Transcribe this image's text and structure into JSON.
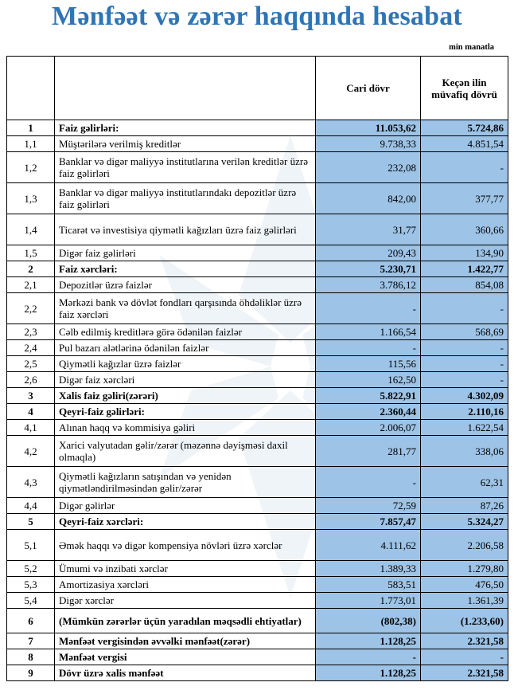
{
  "title": "Mənfəət və zərər haqqında hesabat",
  "unit": "min manatla",
  "header": {
    "num": "",
    "label": "",
    "current": "Cari dövr",
    "previous": "Keçən ilin müvafiq dövrü"
  },
  "colors": {
    "title": "#2f75b5",
    "value_cell": "#9dc3e6"
  },
  "rows": [
    {
      "num": "1",
      "label": "Faiz gəlirləri:",
      "current": "11.053,62",
      "previous": "5.724,86",
      "bold": true,
      "size": "s"
    },
    {
      "num": "1,1",
      "label": "Müştərilərə verilmiş kreditlər",
      "current": "9.738,33",
      "previous": "4.851,54",
      "size": "s"
    },
    {
      "num": "1,2",
      "label": "Banklar və digər maliyyə institutlarına verilən kreditlər üzrə faiz gəlirləri",
      "current": "232,08",
      "previous": "-",
      "size": "d"
    },
    {
      "num": "1,3",
      "label": "Banklar və digər maliyyə institutlarındakı depozitlər üzrə faiz gəlirləri",
      "current": "842,00",
      "previous": "377,77",
      "size": "d"
    },
    {
      "num": "1,4",
      "label": "Ticarət və investisiya qiymətli kağızları üzrə faiz gəlirləri",
      "current": "31,77",
      "previous": "360,66",
      "size": "d"
    },
    {
      "num": "1,5",
      "label": "Digər faiz gəlirləri",
      "current": "209,43",
      "previous": "134,90",
      "size": "s"
    },
    {
      "num": "2",
      "label": "Faiz xərcləri:",
      "current": "5.230,71",
      "previous": "1.422,77",
      "bold": true,
      "size": "s"
    },
    {
      "num": "2,1",
      "label": "Depozitlər üzrə faizlər",
      "current": "3.786,12",
      "previous": "854,08",
      "size": "s"
    },
    {
      "num": "2,2",
      "label": "Mərkəzi bank və dövlət fondları qarşısında öhdəliklər üzrə faiz xərcləri",
      "current": "-",
      "previous": "-",
      "size": "d"
    },
    {
      "num": "2,3",
      "label": "Cəlb edilmiş kreditlərə görə ödənilən faizlər",
      "current": "1.166,54",
      "previous": "568,69",
      "size": "s"
    },
    {
      "num": "2,4",
      "label": "Pul bazarı alətlərinə ödənilən faizlər",
      "current": "-",
      "previous": "-",
      "size": "s"
    },
    {
      "num": "2,5",
      "label": "Qiymətli kağızlar üzrə faizlər",
      "current": "115,56",
      "previous": "-",
      "size": "s"
    },
    {
      "num": "2,6",
      "label": "Digər faiz xərcləri",
      "current": "162,50",
      "previous": "-",
      "size": "s"
    },
    {
      "num": "3",
      "label": "Xalis faiz gəliri(zərəri)",
      "current": "5.822,91",
      "previous": "4.302,09",
      "bold": true,
      "size": "s"
    },
    {
      "num": "4",
      "label": "Qeyri-faiz gəlirləri:",
      "current": "2.360,44",
      "previous": "2.110,16",
      "bold": true,
      "size": "s"
    },
    {
      "num": "4,1",
      "label": "Alınan haqq və kommisiya gəliri",
      "current": "2.006,07",
      "previous": "1.622,54",
      "size": "s"
    },
    {
      "num": "4,2",
      "label": "Xarici valyutadan gəlir/zərər (məzənnə dəyişməsi daxil olmaqla)",
      "current": "281,77",
      "previous": "338,06",
      "size": "d"
    },
    {
      "num": "4,3",
      "label": "Qiymətli kağızların satışından və yenidən qiymətləndirilməsindən gəlir/zərər",
      "current": "-",
      "previous": "62,31",
      "size": "d"
    },
    {
      "num": "4,4",
      "label": "Digər gəlirlər",
      "current": "72,59",
      "previous": "87,26",
      "size": "s"
    },
    {
      "num": "5",
      "label": "Qeyri-faiz xərcləri:",
      "current": "7.857,47",
      "previous": "5.324,27",
      "bold": true,
      "size": "s"
    },
    {
      "num": "5,1",
      "label": "Əmək haqqı və digər kompensiya növləri üzrə xərclər",
      "current": "4.111,62",
      "previous": "2.206,58",
      "size": "d"
    },
    {
      "num": "5,2",
      "label": "Ümumi və inzibati xərclər",
      "current": "1.389,33",
      "previous": "1.279,80",
      "size": "s"
    },
    {
      "num": "5,3",
      "label": "Amortizasiya xərcləri",
      "current": "583,51",
      "previous": "476,50",
      "size": "s"
    },
    {
      "num": "5,4",
      "label": "Digər xərclər",
      "current": "1.773,01",
      "previous": "1.361,39",
      "size": "s"
    },
    {
      "num": "6",
      "label": "(Mümkün zərərlər üçün yaradılan məqsədli ehtiyatlar)",
      "current": "(802,38)",
      "previous": "(1.233,60)",
      "bold": true,
      "size": "m"
    },
    {
      "num": "7",
      "label": "Mənfəət vergisindən əvvəlki mənfəət(zərər)",
      "current": "1.128,25",
      "previous": "2.321,58",
      "bold": true,
      "size": "s"
    },
    {
      "num": "8",
      "label": "Mənfəət vergisi",
      "current": "-",
      "previous": "-",
      "bold": true,
      "size": "s"
    },
    {
      "num": "9",
      "label": "Dövr üzrə xalis mənfəət",
      "current": "1.128,25",
      "previous": "2.321,58",
      "bold": true,
      "size": "s"
    }
  ]
}
